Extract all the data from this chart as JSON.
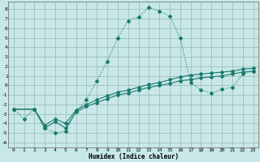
{
  "xlabel": "Humidex (Indice chaleur)",
  "background_color": "#c8e8e8",
  "grid_color": "#9fbfbf",
  "line_color": "#1a7a6e",
  "xlim": [
    -0.5,
    23.5
  ],
  "ylim": [
    -6.5,
    8.8
  ],
  "xticks": [
    0,
    1,
    2,
    3,
    4,
    5,
    6,
    7,
    8,
    9,
    10,
    11,
    12,
    13,
    14,
    15,
    16,
    17,
    18,
    19,
    20,
    21,
    22,
    23
  ],
  "yticks": [
    -6,
    -5,
    -4,
    -3,
    -2,
    -1,
    0,
    1,
    2,
    3,
    4,
    5,
    6,
    7,
    8
  ],
  "line1_x": [
    0,
    1,
    2,
    3,
    4,
    5,
    6,
    7,
    8,
    9,
    10,
    11,
    12,
    13,
    14,
    15,
    16,
    17,
    18,
    19,
    20,
    21,
    22,
    23
  ],
  "line1_y": [
    -2.5,
    -3.5,
    -2.5,
    -4.5,
    -5.0,
    -4.8,
    -2.7,
    -1.5,
    0.5,
    2.5,
    5.0,
    6.8,
    7.2,
    8.2,
    7.8,
    7.3,
    5.0,
    0.3,
    -0.5,
    -0.8,
    -0.4,
    -0.2,
    1.2,
    1.5
  ],
  "line2_x": [
    0,
    2,
    3,
    4,
    5,
    6,
    7,
    8,
    9,
    10,
    11,
    12,
    13,
    14,
    15,
    16,
    17,
    18,
    19,
    20,
    21,
    22,
    23
  ],
  "line2_y": [
    -2.5,
    -2.5,
    -4.5,
    -3.8,
    -4.5,
    -2.8,
    -2.2,
    -1.8,
    -1.4,
    -1.0,
    -0.8,
    -0.5,
    -0.2,
    0.0,
    0.2,
    0.5,
    0.6,
    0.8,
    0.9,
    1.0,
    1.2,
    1.4,
    1.5
  ],
  "line3_x": [
    0,
    2,
    3,
    4,
    5,
    6,
    7,
    8,
    9,
    10,
    11,
    12,
    13,
    14,
    15,
    16,
    17,
    18,
    19,
    20,
    21,
    22,
    23
  ],
  "line3_y": [
    -2.5,
    -2.5,
    -4.2,
    -3.5,
    -4.0,
    -2.6,
    -2.0,
    -1.5,
    -1.1,
    -0.7,
    -0.5,
    -0.2,
    0.1,
    0.3,
    0.6,
    0.9,
    1.1,
    1.2,
    1.3,
    1.4,
    1.5,
    1.7,
    1.8
  ]
}
